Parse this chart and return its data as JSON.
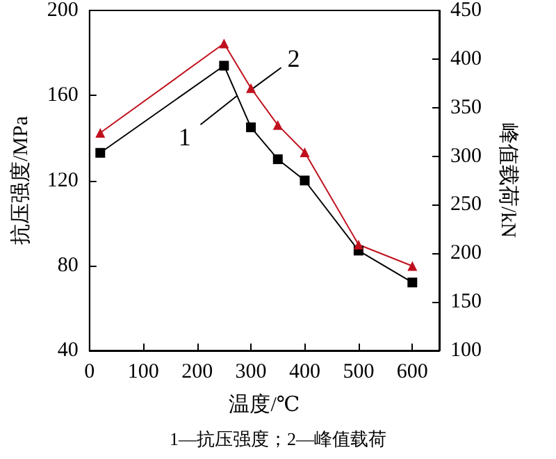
{
  "chart_data": {
    "type": "line",
    "xlabel": "温度/℃",
    "ylabel": "抗压强度/MPa",
    "y2label": "峰值载荷/kN",
    "x": [
      20,
      250,
      300,
      350,
      400,
      500,
      600
    ],
    "series": [
      {
        "color": "#000000",
        "marker": "square",
        "values": [
          133,
          174,
          145,
          130,
          120,
          87,
          72
        ]
      },
      {
        "color": "#c0101e",
        "marker": "triangle",
        "axis": "y2",
        "values": [
          324,
          416,
          370,
          332,
          304,
          209,
          187
        ]
      }
    ],
    "xlim": [
      0,
      650
    ],
    "xticks": [
      0,
      100,
      200,
      300,
      400,
      500,
      600
    ],
    "ylim": [
      40,
      200
    ],
    "yticks": [
      40,
      80,
      120,
      160,
      200
    ],
    "y2lim": [
      100,
      450
    ],
    "y2ticks": [
      100,
      150,
      200,
      250,
      300,
      350,
      400,
      450
    ],
    "grid": false,
    "annotations": [
      {
        "text": "1",
        "x": 275,
        "y": 160
      },
      {
        "text": "2",
        "x": 302,
        "y": 163
      },
      "1—抗压强度；2—峰值载荷"
    ]
  }
}
